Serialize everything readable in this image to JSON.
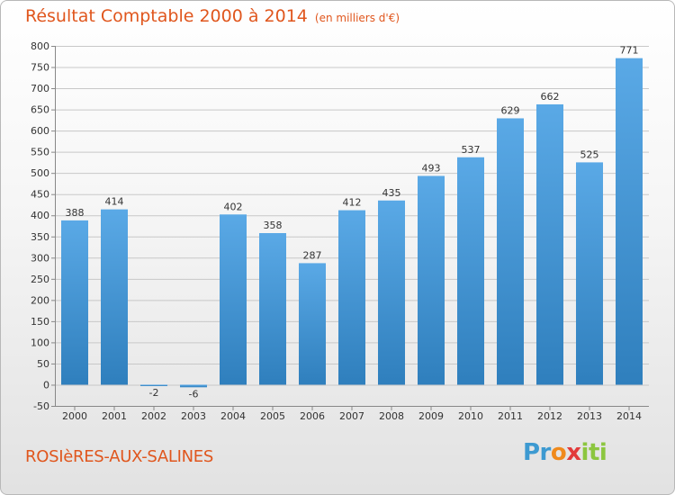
{
  "header": {
    "title": "Résultat Comptable 2000 à 2014",
    "unit": "(en milliers d'€)"
  },
  "footer": {
    "commune": "ROSIèRES-AUX-SALINES",
    "logo_parts": [
      "Pr",
      "o",
      "x",
      "iti"
    ]
  },
  "colors": {
    "bar_light": "#5aa9e6",
    "bar_dark": "#2f7fbd",
    "grid": "#c8c8c8",
    "accent": "#e0561d"
  },
  "chart_data": {
    "type": "bar",
    "title": "Résultat Comptable 2000 à 2014",
    "ylabel": "(en milliers d'€)",
    "xlabel": "",
    "categories": [
      "2000",
      "2001",
      "2002",
      "2003",
      "2004",
      "2005",
      "2006",
      "2007",
      "2008",
      "2009",
      "2010",
      "2011",
      "2012",
      "2013",
      "2014"
    ],
    "values": [
      388,
      414,
      -2,
      -6,
      402,
      358,
      287,
      412,
      435,
      493,
      537,
      629,
      662,
      525,
      771
    ],
    "ylim": [
      -50,
      800
    ],
    "yticks": [
      -50,
      0,
      50,
      100,
      150,
      200,
      250,
      300,
      350,
      400,
      450,
      500,
      550,
      600,
      650,
      700,
      750,
      800
    ],
    "grid": true
  }
}
